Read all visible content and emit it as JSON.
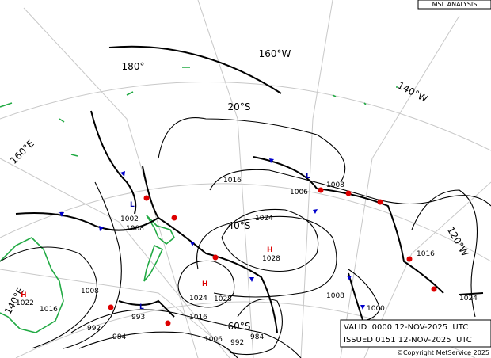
{
  "header": {
    "title": "MSL ANALYSIS"
  },
  "graticule_labels": [
    "180°",
    "160°W",
    "140°W",
    "20°S",
    "160°E",
    "40°S",
    "120°W",
    "60°S",
    "140°E"
  ],
  "isobar_labels": [
    "1016",
    "1006",
    "1008",
    "1024",
    "1028",
    "1002",
    "1008",
    "1016",
    "1024",
    "1008",
    "1000",
    "1024",
    "1028",
    "1016",
    "1008",
    "1016",
    "1022",
    "992",
    "993",
    "984",
    "1006",
    "992",
    "984"
  ],
  "centers": [
    "H",
    "H",
    "H",
    "L",
    "L",
    "L"
  ],
  "footer": {
    "valid": "VALID  0000 12-NOV-2025  UTC",
    "issued": "ISSUED 0151 12-NOV-2025  UTC",
    "copyright": "©Copyright MetService 2025"
  }
}
